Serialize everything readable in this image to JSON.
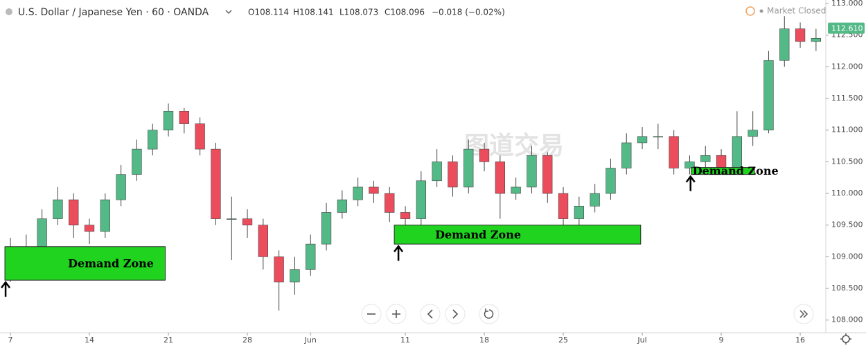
{
  "chart_data": {
    "type": "candlestick",
    "title": "U.S. Dollar / Japanese Yen · 60 · OANDA",
    "ohlc_readout": [
      "O108.114",
      "H108.141",
      "L108.073",
      "C108.096",
      "−0.018 (−0.02%)"
    ],
    "status": "Market Closed",
    "watermark": "图道交易",
    "up_color": "#53b987",
    "down_color": "#eb4d5c",
    "open": [
      109.1,
      109.0,
      109.05,
      109.6,
      109.9,
      109.5,
      109.4,
      109.9,
      110.3,
      110.7,
      111.0,
      111.3,
      111.1,
      110.7,
      109.6,
      109.6,
      109.5,
      109.0,
      108.6,
      108.8,
      109.2,
      109.7,
      109.9,
      110.1,
      110.0,
      109.7,
      109.6,
      110.2,
      110.5,
      110.1,
      110.7,
      110.5,
      110.0,
      110.1,
      110.6,
      110.0,
      109.6,
      109.8,
      110.0,
      110.4,
      110.8,
      110.9,
      110.9,
      110.4,
      110.5,
      110.6,
      110.4,
      110.9,
      111.0,
      112.1,
      112.6,
      112.4
    ],
    "high": [
      109.3,
      109.35,
      109.75,
      110.1,
      110.0,
      109.6,
      110.0,
      110.45,
      110.85,
      111.1,
      111.42,
      111.35,
      111.2,
      110.8,
      109.95,
      109.75,
      109.6,
      109.1,
      109.0,
      109.35,
      109.85,
      110.05,
      110.25,
      110.2,
      110.1,
      109.8,
      110.35,
      110.7,
      110.6,
      110.85,
      110.8,
      110.6,
      110.25,
      110.75,
      110.65,
      110.1,
      109.95,
      110.15,
      110.55,
      110.95,
      111.05,
      111.1,
      111.0,
      110.6,
      110.75,
      110.7,
      111.3,
      111.3,
      112.25,
      112.8,
      112.7,
      112.6
    ],
    "low": [
      108.6,
      108.75,
      108.95,
      109.5,
      109.3,
      109.2,
      109.3,
      109.8,
      110.2,
      110.6,
      110.9,
      110.95,
      110.6,
      109.5,
      108.95,
      109.3,
      108.8,
      108.15,
      108.4,
      108.7,
      109.1,
      109.6,
      109.8,
      109.85,
      109.55,
      109.35,
      109.5,
      110.1,
      109.95,
      110.0,
      110.35,
      109.6,
      109.9,
      110.0,
      109.85,
      109.4,
      109.45,
      109.7,
      109.9,
      110.3,
      110.7,
      110.7,
      110.3,
      110.3,
      110.4,
      110.35,
      110.3,
      110.75,
      110.95,
      112.0,
      112.3,
      112.25
    ],
    "close": [
      109.0,
      109.05,
      109.6,
      109.9,
      109.5,
      109.4,
      109.9,
      110.3,
      110.7,
      111.0,
      111.3,
      111.1,
      110.7,
      109.6,
      109.6,
      109.5,
      109.0,
      108.6,
      108.8,
      109.2,
      109.7,
      109.9,
      110.1,
      110.0,
      109.7,
      109.6,
      110.2,
      110.5,
      110.1,
      110.7,
      110.5,
      110.0,
      110.1,
      110.6,
      110.0,
      109.6,
      109.8,
      110.0,
      110.4,
      110.8,
      110.9,
      110.9,
      110.4,
      110.5,
      110.6,
      110.4,
      110.9,
      111.0,
      112.1,
      112.6,
      112.4,
      112.45
    ],
    "last_price": {
      "value": 112.61,
      "label": "112.610"
    },
    "xlim": [
      -0.66,
      51.62
    ],
    "xticks": [
      {
        "value": 0,
        "label": "7"
      },
      {
        "value": 5,
        "label": "14"
      },
      {
        "value": 10,
        "label": "21"
      },
      {
        "value": 15,
        "label": "28"
      },
      {
        "value": 19,
        "label": "Jun"
      },
      {
        "value": 25,
        "label": "11"
      },
      {
        "value": 30,
        "label": "18"
      },
      {
        "value": 35,
        "label": "25"
      },
      {
        "value": 40,
        "label": "Jul"
      },
      {
        "value": 45,
        "label": "9"
      },
      {
        "value": 50,
        "label": "16"
      }
    ],
    "ylim": [
      107.8,
      113.055
    ],
    "yticks": [
      {
        "value": 108,
        "label": "108.000"
      },
      {
        "value": 108.5,
        "label": "108.500"
      },
      {
        "value": 109,
        "label": "109.000"
      },
      {
        "value": 109.5,
        "label": "109.500"
      },
      {
        "value": 110,
        "label": "110.000"
      },
      {
        "value": 110.5,
        "label": "110.500"
      },
      {
        "value": 111,
        "label": "111.000"
      },
      {
        "value": 111.5,
        "label": "111.500"
      },
      {
        "value": 112,
        "label": "112.000"
      },
      {
        "value": 112.5,
        "label": "112.500"
      },
      {
        "value": 113,
        "label": "113.000"
      }
    ],
    "grid": false,
    "annotations": [
      {
        "label": "Demand Zone",
        "x": [
          -0.35,
          9.8
        ],
        "y": [
          108.63,
          109.16
        ]
      },
      {
        "label": "Demand Zone",
        "x": [
          24.3,
          39.9
        ],
        "y": [
          109.2,
          109.5
        ]
      },
      {
        "label": "Demand Zone",
        "x": [
          43.1,
          47.1
        ],
        "y": [
          110.3,
          110.41
        ]
      }
    ]
  }
}
